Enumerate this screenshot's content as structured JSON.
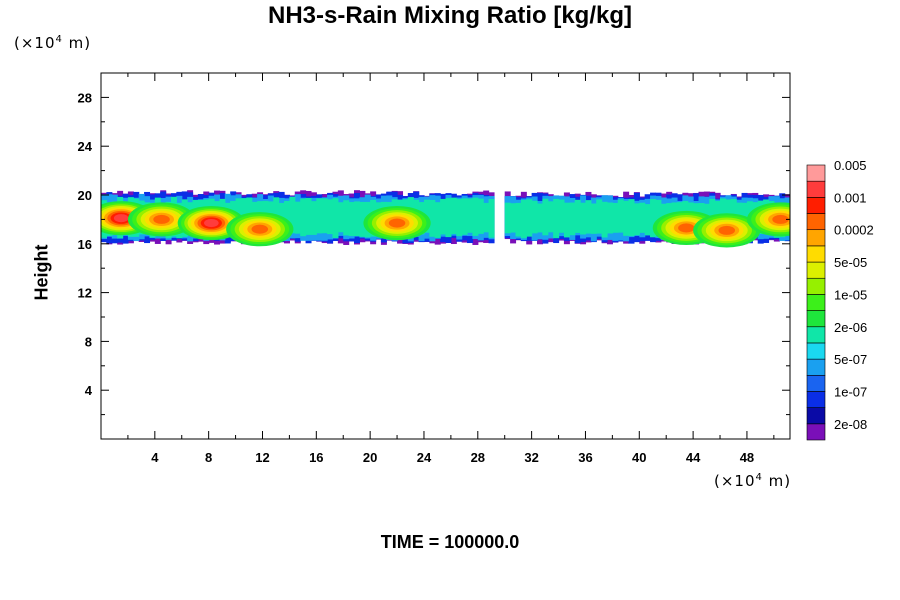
{
  "chart_data": {
    "type": "heatmap",
    "title": "NH3-s-Rain Mixing Ratio [kg/kg]",
    "xlabel": "",
    "ylabel": "Height",
    "x_unit": "(×10",
    "x_unit_exp": "4",
    "x_unit_suffix": " m)",
    "y_unit": "(×10",
    "y_unit_exp": "4",
    "y_unit_suffix": " m)",
    "xlim": [
      0,
      51.2
    ],
    "ylim": [
      0,
      30
    ],
    "x_ticks": [
      4,
      8,
      12,
      16,
      20,
      24,
      28,
      32,
      36,
      40,
      44,
      48
    ],
    "y_ticks": [
      4,
      8,
      12,
      16,
      20,
      24,
      28
    ],
    "footer": "TIME = 100000.0",
    "colorbar": {
      "colors": [
        "#7a0fb8",
        "#0a0aa6",
        "#0a2ee6",
        "#1a64f0",
        "#1aa0f0",
        "#1ad8f0",
        "#10e6a8",
        "#1ee63c",
        "#3cf01a",
        "#96f000",
        "#dcf000",
        "#ffdc00",
        "#ffa500",
        "#ff6400",
        "#ff1e00",
        "#ff3c3c",
        "#ff9a9a"
      ],
      "labels": [
        "2e-08",
        "1e-07",
        "5e-07",
        "2e-06",
        "1e-05",
        "5e-05",
        "0.0002",
        "0.001",
        "0.005"
      ]
    },
    "field_segments": [
      {
        "x0": 0.0,
        "x1": 28.8,
        "y0": 16.3,
        "y1": 20.0
      },
      {
        "x0": 30.0,
        "x1": 51.2,
        "y0": 16.3,
        "y1": 19.9
      }
    ],
    "peaks": [
      {
        "x": 1.5,
        "y": 18.1,
        "level": "0.001"
      },
      {
        "x": 4.5,
        "y": 18.0,
        "level": "0.0002"
      },
      {
        "x": 8.2,
        "y": 17.7,
        "level": "0.001"
      },
      {
        "x": 11.8,
        "y": 17.2,
        "level": "0.0002"
      },
      {
        "x": 22.0,
        "y": 17.7,
        "level": "0.0002"
      },
      {
        "x": 43.5,
        "y": 17.3,
        "level": "0.0002"
      },
      {
        "x": 46.5,
        "y": 17.1,
        "level": "0.0002"
      },
      {
        "x": 50.5,
        "y": 18.0,
        "level": "0.0002"
      }
    ]
  }
}
